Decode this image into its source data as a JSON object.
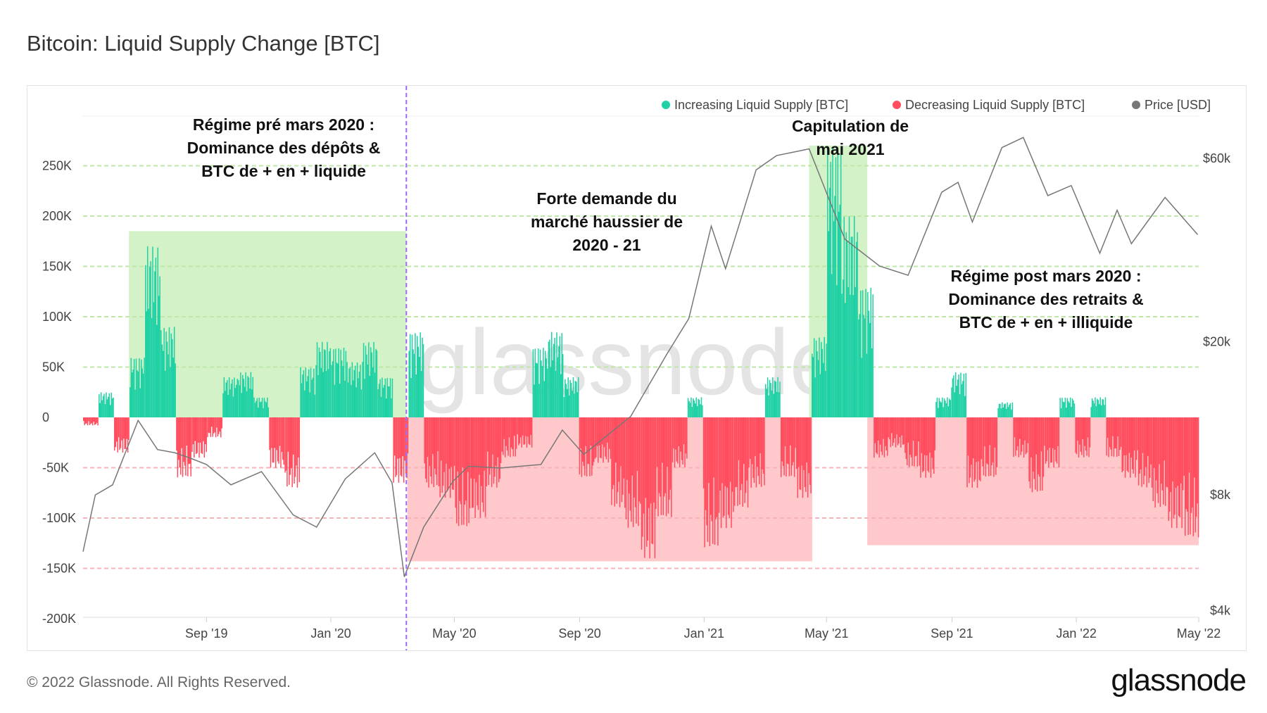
{
  "title": "Bitcoin: Liquid Supply Change [BTC]",
  "footer": "© 2022 Glassnode. All Rights Reserved.",
  "logo": "glassnode",
  "watermark": "glassnode",
  "colors": {
    "increase": "#1fd1a4",
    "decrease": "#ff4d5e",
    "price": "#777777",
    "green_region": "#d3f2c8",
    "red_region": "#ffc8cb",
    "divider": "#9b6cf5"
  },
  "chart_data": {
    "type": "bar",
    "title": "Bitcoin: Liquid Supply Change [BTC]",
    "legend_position": "top-right",
    "legend": [
      "Increasing Liquid Supply [BTC]",
      "Decreasing Liquid Supply [BTC]",
      "Price [USD]"
    ],
    "x_range": [
      "2019-05-03",
      "2022-05-01"
    ],
    "x_ticks": [
      {
        "date": "2019-09-01",
        "label": "Sep '19"
      },
      {
        "date": "2020-01-01",
        "label": "Jan '20"
      },
      {
        "date": "2020-05-01",
        "label": "May '20"
      },
      {
        "date": "2020-09-01",
        "label": "Sep '20"
      },
      {
        "date": "2021-01-01",
        "label": "Jan '21"
      },
      {
        "date": "2021-05-01",
        "label": "May '21"
      },
      {
        "date": "2021-09-01",
        "label": "Sep '21"
      },
      {
        "date": "2022-01-01",
        "label": "Jan '22"
      },
      {
        "date": "2022-05-01",
        "label": "May '22"
      }
    ],
    "y_left": {
      "range": [
        -200000,
        250000
      ],
      "ticks": [
        {
          "v": 250000,
          "label": "250K"
        },
        {
          "v": 200000,
          "label": "200K"
        },
        {
          "v": 150000,
          "label": "150K"
        },
        {
          "v": 100000,
          "label": "100K"
        },
        {
          "v": 50000,
          "label": "50K"
        },
        {
          "v": 0,
          "label": "0"
        },
        {
          "v": -50000,
          "label": "-50K"
        },
        {
          "v": -100000,
          "label": "-100K"
        },
        {
          "v": -150000,
          "label": "-150K"
        },
        {
          "v": -200000,
          "label": "-200K"
        }
      ]
    },
    "y_right": {
      "scale": "log",
      "ticks": [
        {
          "v": 60000,
          "label": "$60k"
        },
        {
          "v": 20000,
          "label": "$20k"
        },
        {
          "v": 8000,
          "label": "$8k"
        },
        {
          "v": 4000,
          "label": "$4k"
        }
      ]
    },
    "supply_change_start": "2019-05-03",
    "supply_change_step": "half-month",
    "supply_change_k": [
      -8,
      25,
      -35,
      60,
      170,
      90,
      -60,
      -40,
      -20,
      40,
      45,
      20,
      -50,
      -70,
      50,
      75,
      70,
      55,
      75,
      40,
      -65,
      85,
      -70,
      -80,
      -110,
      -100,
      -70,
      -40,
      -30,
      70,
      85,
      40,
      -60,
      -45,
      -90,
      -110,
      -140,
      -100,
      -50,
      20,
      -130,
      -110,
      -90,
      -70,
      40,
      -60,
      -80,
      80,
      270,
      200,
      130,
      -40,
      -30,
      -50,
      -60,
      20,
      45,
      -70,
      -60,
      15,
      -40,
      -75,
      -50,
      20,
      -40,
      20,
      -40,
      -60,
      -70,
      -90,
      -110,
      -120
    ],
    "price": [
      [
        "2019-05-03",
        5700
      ],
      [
        "2019-05-15",
        8000
      ],
      [
        "2019-06-01",
        8500
      ],
      [
        "2019-06-26",
        12500
      ],
      [
        "2019-07-15",
        10500
      ],
      [
        "2019-08-01",
        10300
      ],
      [
        "2019-08-15",
        10000
      ],
      [
        "2019-09-01",
        9600
      ],
      [
        "2019-09-25",
        8500
      ],
      [
        "2019-10-25",
        9200
      ],
      [
        "2019-11-25",
        7100
      ],
      [
        "2019-12-18",
        6600
      ],
      [
        "2020-01-15",
        8800
      ],
      [
        "2020-02-13",
        10300
      ],
      [
        "2020-03-01",
        8600
      ],
      [
        "2020-03-13",
        4900
      ],
      [
        "2020-04-01",
        6600
      ],
      [
        "2020-04-30",
        8700
      ],
      [
        "2020-05-15",
        9500
      ],
      [
        "2020-06-15",
        9400
      ],
      [
        "2020-07-25",
        9600
      ],
      [
        "2020-08-15",
        11800
      ],
      [
        "2020-09-05",
        10200
      ],
      [
        "2020-10-21",
        12800
      ],
      [
        "2020-11-25",
        18500
      ],
      [
        "2020-12-17",
        23000
      ],
      [
        "2021-01-08",
        40000
      ],
      [
        "2021-01-22",
        31000
      ],
      [
        "2021-02-21",
        56000
      ],
      [
        "2021-03-13",
        61000
      ],
      [
        "2021-04-14",
        63500
      ],
      [
        "2021-05-19",
        37000
      ],
      [
        "2021-06-22",
        31500
      ],
      [
        "2021-07-20",
        29800
      ],
      [
        "2021-08-22",
        49000
      ],
      [
        "2021-09-07",
        52000
      ],
      [
        "2021-09-21",
        41000
      ],
      [
        "2021-10-20",
        64000
      ],
      [
        "2021-11-10",
        68000
      ],
      [
        "2021-12-04",
        48000
      ],
      [
        "2021-12-27",
        51000
      ],
      [
        "2022-01-24",
        34000
      ],
      [
        "2022-02-10",
        44000
      ],
      [
        "2022-02-24",
        36000
      ],
      [
        "2022-03-29",
        47500
      ],
      [
        "2022-04-30",
        38000
      ]
    ],
    "regions": [
      {
        "type": "increase",
        "from": "2019-06-17",
        "to": "2020-03-15",
        "top": 185000,
        "bottom": 0
      },
      {
        "type": "decrease",
        "from": "2020-03-16",
        "to": "2021-04-17",
        "top": 0,
        "bottom": -143000
      },
      {
        "type": "increase",
        "from": "2021-04-14",
        "to": "2021-06-10",
        "top": 270000,
        "bottom": 0
      },
      {
        "type": "decrease",
        "from": "2021-06-10",
        "to": "2022-05-01",
        "top": 0,
        "bottom": -127000
      }
    ],
    "divider_date": "2020-03-15",
    "annotations": {
      "pre": [
        "Régime pré mars 2020 :",
        "Dominance des dépôts &",
        "BTC de + en + liquide"
      ],
      "bull": [
        "Forte demande du",
        "marché haussier de",
        "2020 - 21"
      ],
      "capitulation": [
        "Capitulation de",
        "mai 2021"
      ],
      "post": [
        "Régime post mars 2020 :",
        "Dominance des retraits &",
        "BTC de + en + illiquide"
      ]
    }
  }
}
